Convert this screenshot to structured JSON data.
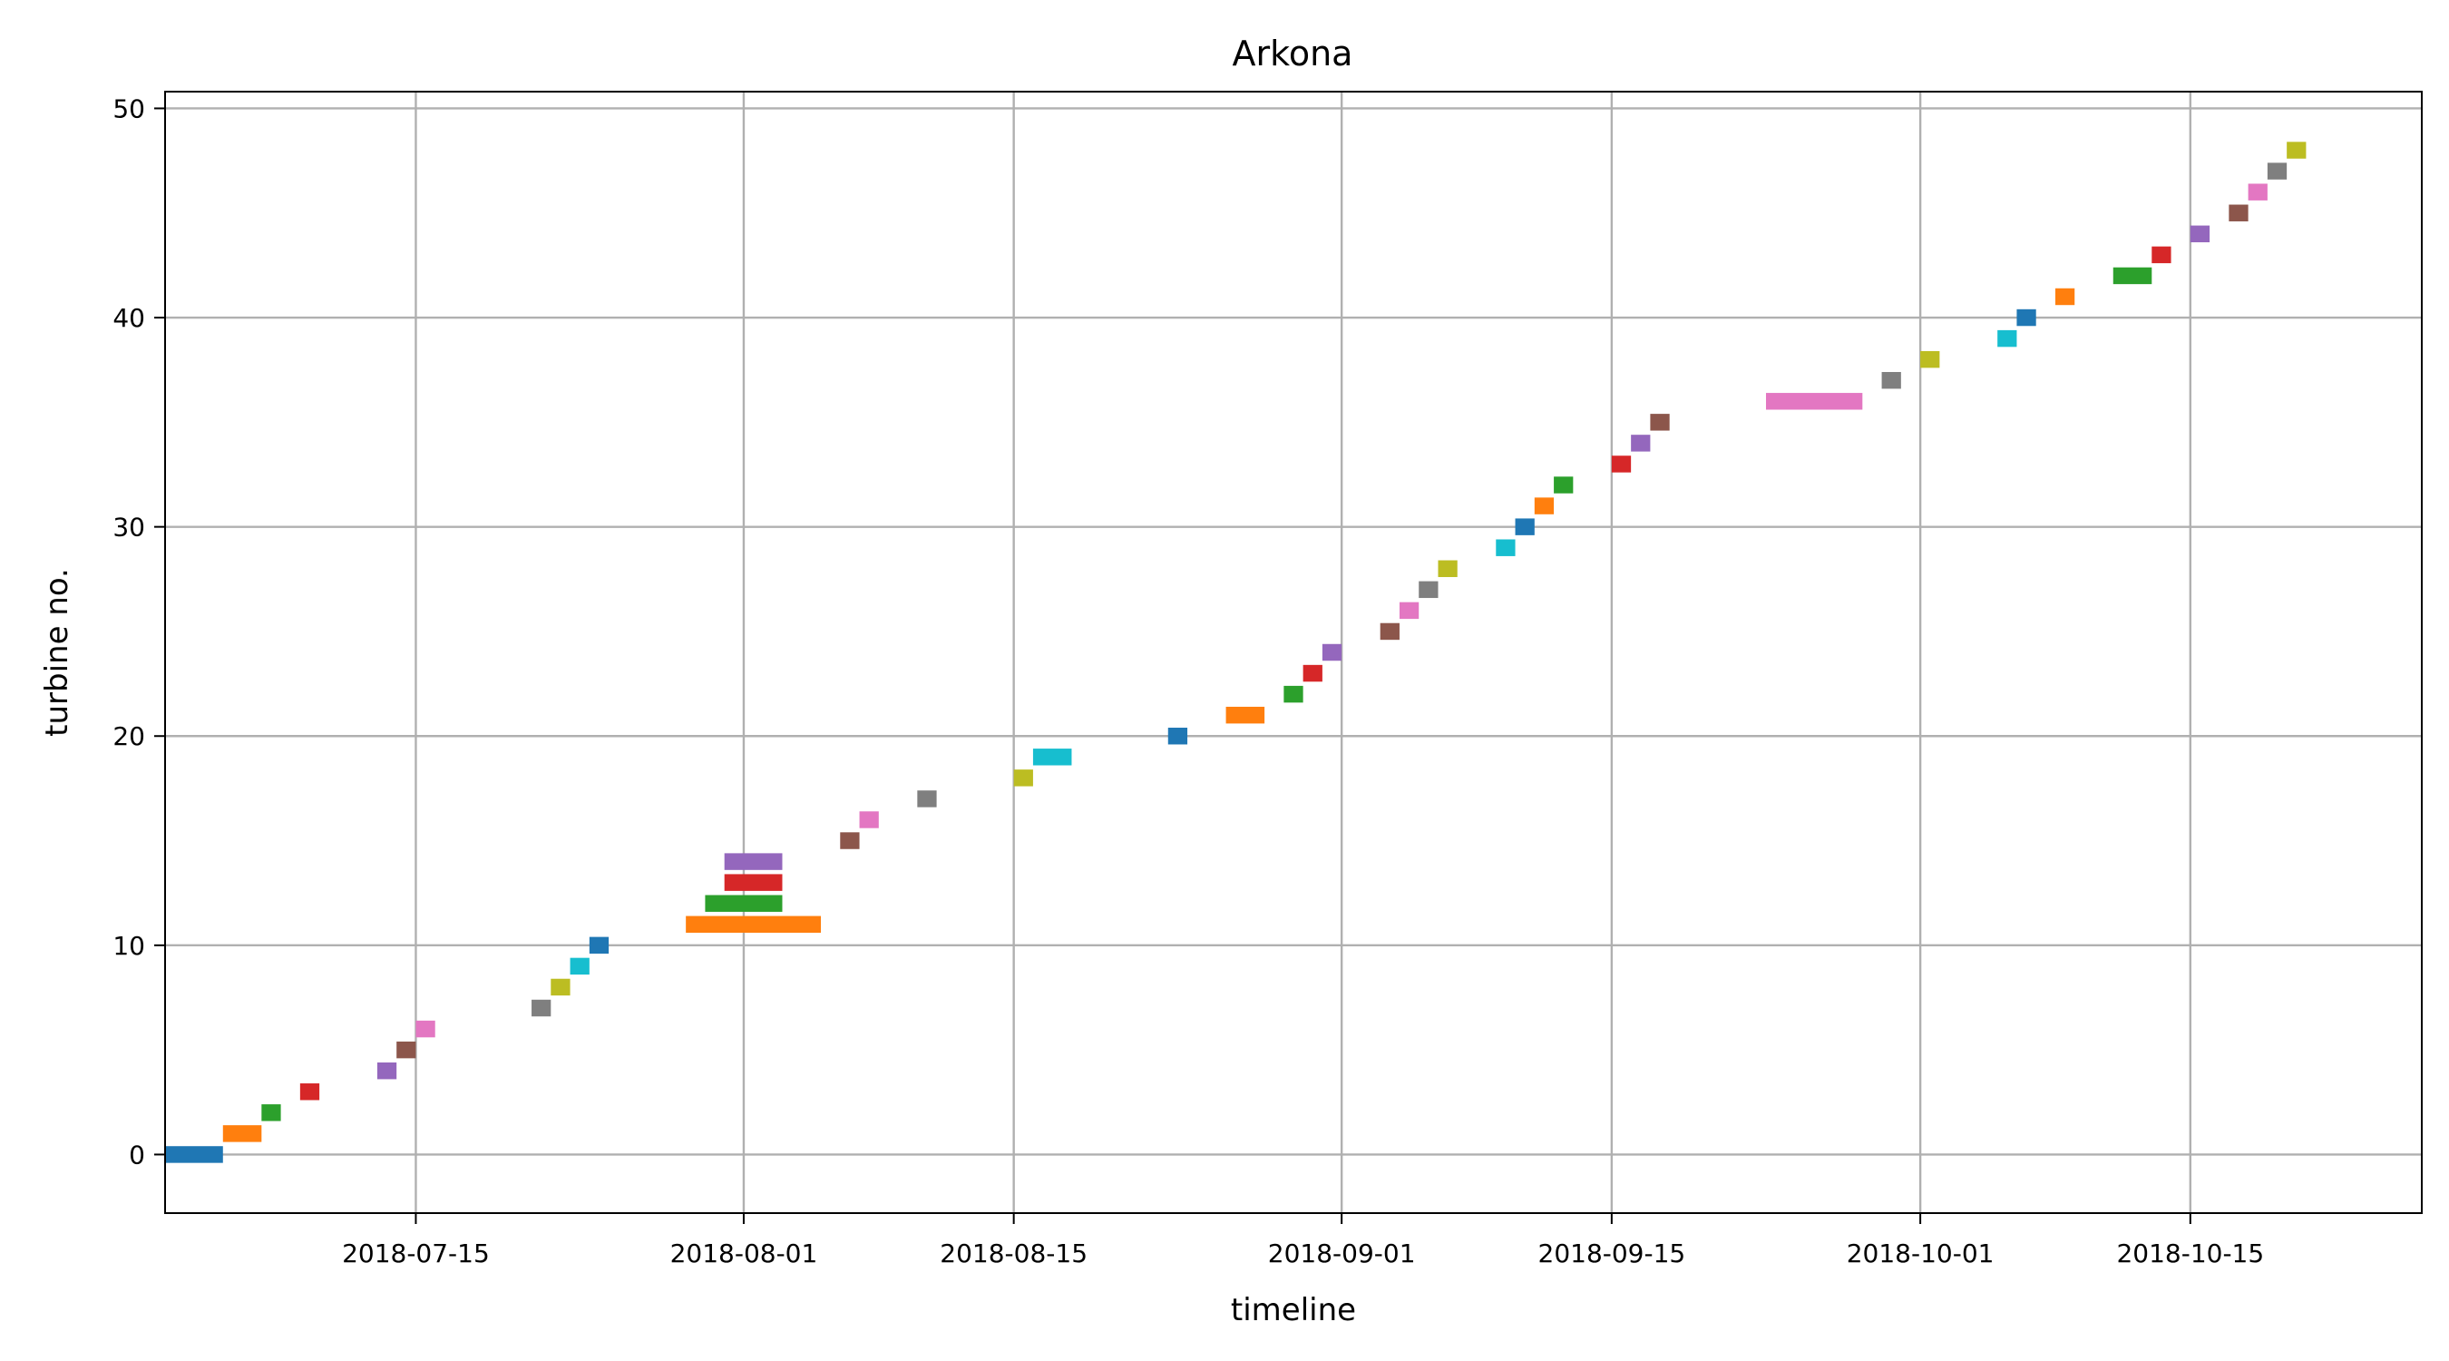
{
  "chart_data": {
    "type": "timeline",
    "title": "Arkona",
    "xlabel": "timeline",
    "ylabel": "turbine no.",
    "grid": true,
    "xlim": [
      "2018-07-02",
      "2018-10-27"
    ],
    "ylim": [
      -2.8,
      50.8
    ],
    "x_ticks": [
      "2018-07-15",
      "2018-08-01",
      "2018-08-15",
      "2018-09-01",
      "2018-09-15",
      "2018-10-01",
      "2018-10-15"
    ],
    "y_ticks": [
      0,
      10,
      20,
      30,
      40,
      50
    ],
    "palette": [
      "#1f77b4",
      "#ff7f0e",
      "#2ca02c",
      "#d62728",
      "#9467bd",
      "#8c564b",
      "#e377c2",
      "#7f7f7f",
      "#bcbd22",
      "#17becf"
    ],
    "intervals": [
      {
        "turbine": 0,
        "start": "2018-07-02",
        "end": "2018-07-05"
      },
      {
        "turbine": 1,
        "start": "2018-07-05",
        "end": "2018-07-07"
      },
      {
        "turbine": 2,
        "start": "2018-07-07",
        "end": "2018-07-08"
      },
      {
        "turbine": 3,
        "start": "2018-07-09",
        "end": "2018-07-10"
      },
      {
        "turbine": 4,
        "start": "2018-07-13",
        "end": "2018-07-14"
      },
      {
        "turbine": 5,
        "start": "2018-07-14",
        "end": "2018-07-15"
      },
      {
        "turbine": 6,
        "start": "2018-07-15",
        "end": "2018-07-16"
      },
      {
        "turbine": 7,
        "start": "2018-07-21",
        "end": "2018-07-22"
      },
      {
        "turbine": 8,
        "start": "2018-07-22",
        "end": "2018-07-23"
      },
      {
        "turbine": 9,
        "start": "2018-07-23",
        "end": "2018-07-24"
      },
      {
        "turbine": 10,
        "start": "2018-07-24",
        "end": "2018-07-25"
      },
      {
        "turbine": 11,
        "start": "2018-07-29",
        "end": "2018-08-05"
      },
      {
        "turbine": 12,
        "start": "2018-07-30",
        "end": "2018-08-03"
      },
      {
        "turbine": 13,
        "start": "2018-07-31",
        "end": "2018-08-03"
      },
      {
        "turbine": 14,
        "start": "2018-07-31",
        "end": "2018-08-03"
      },
      {
        "turbine": 15,
        "start": "2018-08-06",
        "end": "2018-08-07"
      },
      {
        "turbine": 16,
        "start": "2018-08-07",
        "end": "2018-08-08"
      },
      {
        "turbine": 17,
        "start": "2018-08-10",
        "end": "2018-08-11"
      },
      {
        "turbine": 18,
        "start": "2018-08-15",
        "end": "2018-08-16"
      },
      {
        "turbine": 19,
        "start": "2018-08-16",
        "end": "2018-08-18"
      },
      {
        "turbine": 20,
        "start": "2018-08-23",
        "end": "2018-08-24"
      },
      {
        "turbine": 21,
        "start": "2018-08-26",
        "end": "2018-08-28"
      },
      {
        "turbine": 22,
        "start": "2018-08-29",
        "end": "2018-08-30"
      },
      {
        "turbine": 23,
        "start": "2018-08-30",
        "end": "2018-08-31"
      },
      {
        "turbine": 24,
        "start": "2018-08-31",
        "end": "2018-09-01"
      },
      {
        "turbine": 25,
        "start": "2018-09-03",
        "end": "2018-09-04"
      },
      {
        "turbine": 26,
        "start": "2018-09-04",
        "end": "2018-09-05"
      },
      {
        "turbine": 27,
        "start": "2018-09-05",
        "end": "2018-09-06"
      },
      {
        "turbine": 28,
        "start": "2018-09-06",
        "end": "2018-09-07"
      },
      {
        "turbine": 29,
        "start": "2018-09-09",
        "end": "2018-09-10"
      },
      {
        "turbine": 30,
        "start": "2018-09-10",
        "end": "2018-09-11"
      },
      {
        "turbine": 31,
        "start": "2018-09-11",
        "end": "2018-09-12"
      },
      {
        "turbine": 32,
        "start": "2018-09-12",
        "end": "2018-09-13"
      },
      {
        "turbine": 33,
        "start": "2018-09-15",
        "end": "2018-09-16"
      },
      {
        "turbine": 34,
        "start": "2018-09-16",
        "end": "2018-09-17"
      },
      {
        "turbine": 35,
        "start": "2018-09-17",
        "end": "2018-09-18"
      },
      {
        "turbine": 36,
        "start": "2018-09-23",
        "end": "2018-09-28"
      },
      {
        "turbine": 37,
        "start": "2018-09-29",
        "end": "2018-09-30"
      },
      {
        "turbine": 38,
        "start": "2018-10-01",
        "end": "2018-10-02"
      },
      {
        "turbine": 39,
        "start": "2018-10-05",
        "end": "2018-10-06"
      },
      {
        "turbine": 40,
        "start": "2018-10-06",
        "end": "2018-10-07"
      },
      {
        "turbine": 41,
        "start": "2018-10-08",
        "end": "2018-10-09"
      },
      {
        "turbine": 42,
        "start": "2018-10-11",
        "end": "2018-10-13"
      },
      {
        "turbine": 43,
        "start": "2018-10-13",
        "end": "2018-10-14"
      },
      {
        "turbine": 44,
        "start": "2018-10-15",
        "end": "2018-10-16"
      },
      {
        "turbine": 45,
        "start": "2018-10-17",
        "end": "2018-10-18"
      },
      {
        "turbine": 46,
        "start": "2018-10-18",
        "end": "2018-10-19"
      },
      {
        "turbine": 47,
        "start": "2018-10-19",
        "end": "2018-10-20"
      },
      {
        "turbine": 48,
        "start": "2018-10-20",
        "end": "2018-10-21"
      }
    ]
  }
}
